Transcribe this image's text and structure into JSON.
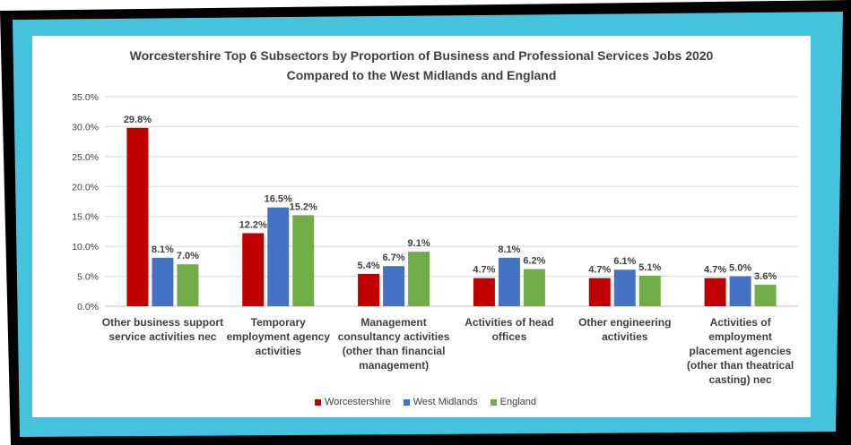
{
  "chart_data": {
    "type": "bar",
    "title_line1": "Worcestershire Top 6 Subsectors by Proportion of Business and Professional Services  Jobs 2020",
    "title_line2": "Compared to the West Midlands and England",
    "categories": [
      [
        "Other business support",
        "service activities nec"
      ],
      [
        "Temporary",
        "employment agency",
        "activities"
      ],
      [
        "Management",
        "consultancy activities",
        "(other than financial",
        "management)"
      ],
      [
        "Activities of head",
        "offices"
      ],
      [
        "Other engineering",
        "activities"
      ],
      [
        "Activities of",
        "employment",
        "placement agencies",
        "(other than  theatrical",
        "casting) nec"
      ]
    ],
    "series": [
      {
        "name": "Worcestershire",
        "color": "#C00000",
        "values": [
          29.8,
          12.2,
          5.4,
          4.7,
          4.7,
          4.7
        ],
        "labels": [
          "29.8%",
          "12.2%",
          "5.4%",
          "4.7%",
          "4.7%",
          "4.7%"
        ]
      },
      {
        "name": "West Midlands",
        "color": "#4472C4",
        "values": [
          8.1,
          16.5,
          6.7,
          8.1,
          6.1,
          5.0
        ],
        "labels": [
          "8.1%",
          "16.5%",
          "6.7%",
          "8.1%",
          "6.1%",
          "5.0%"
        ]
      },
      {
        "name": "England",
        "color": "#70AD47",
        "values": [
          7.0,
          15.2,
          9.1,
          6.2,
          5.1,
          3.6
        ],
        "labels": [
          "7.0%",
          "15.2%",
          "9.1%",
          "6.2%",
          "5.1%",
          "3.6%"
        ]
      }
    ],
    "y_ticks": [
      "0.0%",
      "5.0%",
      "10.0%",
      "15.0%",
      "20.0%",
      "25.0%",
      "30.0%",
      "35.0%"
    ],
    "ylim": [
      0,
      35
    ],
    "grid": true,
    "legend_position": "bottom",
    "frame_colors": {
      "outer": "#000000",
      "border": "#46C3DC",
      "panel": "#FFFFFF"
    }
  }
}
